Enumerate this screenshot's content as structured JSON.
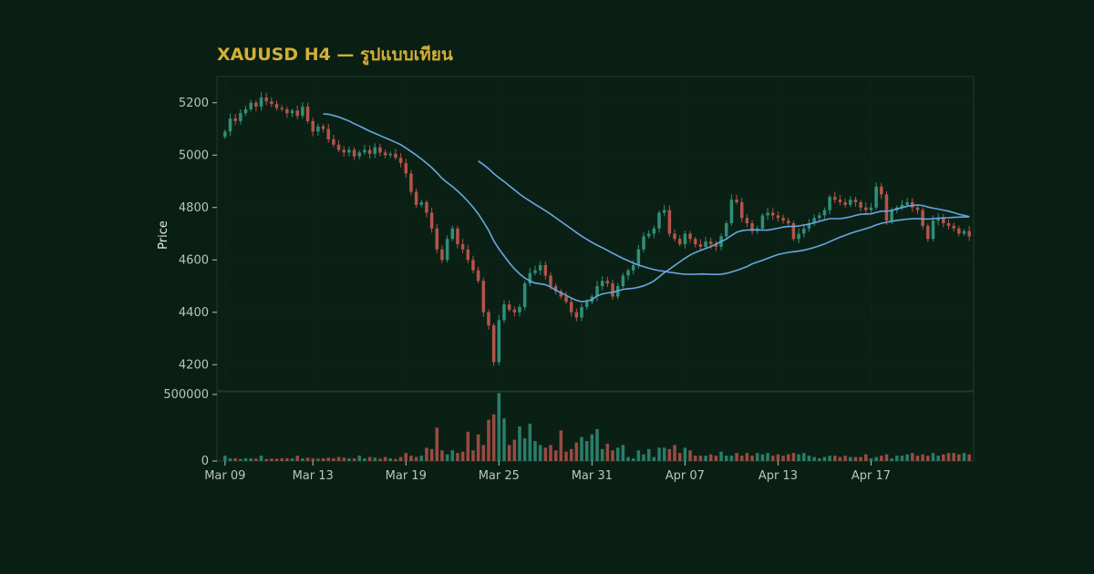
{
  "chart_title": "XAUUSD H4 — รูปแบบเทียน",
  "colors": {
    "background": "#0a1f13",
    "title": "#d4af37",
    "up": "#2f8f78",
    "down": "#b4544a",
    "ma": "#6aa6e0",
    "axis_text": "#b9c4bd",
    "frame": "#20382d"
  },
  "chart_data": [
    {
      "type": "candlestick",
      "title": "XAUUSD H4 — รูปแบบเทียน",
      "ylabel": "Price",
      "ylim": [
        4100,
        5300
      ],
      "yticks": [
        4200,
        4400,
        4600,
        4800,
        5000,
        5200
      ],
      "grid": true,
      "x_tick_labels": [
        "Mar 09",
        "Mar 13",
        "Mar 19",
        "Mar 25",
        "Mar 31",
        "Apr 07",
        "Apr 13",
        "Apr 17"
      ],
      "x_tick_candle_index": [
        0,
        17,
        35,
        53,
        71,
        89,
        107,
        125
      ],
      "close": [
        5090,
        5140,
        5130,
        5160,
        5175,
        5200,
        5185,
        5220,
        5205,
        5195,
        5180,
        5175,
        5160,
        5170,
        5150,
        5185,
        5130,
        5090,
        5110,
        5100,
        5060,
        5040,
        5020,
        5010,
        5020,
        4995,
        5010,
        5020,
        5005,
        5030,
        5010,
        5000,
        5005,
        4990,
        4970,
        4930,
        4860,
        4810,
        4820,
        4780,
        4720,
        4640,
        4600,
        4680,
        4720,
        4660,
        4640,
        4600,
        4560,
        4520,
        4400,
        4350,
        4210,
        4370,
        4430,
        4410,
        4400,
        4420,
        4510,
        4550,
        4560,
        4580,
        4540,
        4500,
        4480,
        4460,
        4440,
        4400,
        4380,
        4420,
        4440,
        4460,
        4500,
        4520,
        4510,
        4460,
        4500,
        4540,
        4560,
        4580,
        4640,
        4690,
        4700,
        4720,
        4780,
        4790,
        4700,
        4680,
        4660,
        4700,
        4680,
        4660,
        4650,
        4670,
        4660,
        4650,
        4690,
        4740,
        4830,
        4820,
        4760,
        4740,
        4710,
        4720,
        4770,
        4780,
        4770,
        4760,
        4750,
        4740,
        4680,
        4700,
        4720,
        4740,
        4760,
        4770,
        4790,
        4840,
        4830,
        4820,
        4810,
        4830,
        4820,
        4800,
        4790,
        4800,
        4880,
        4850,
        4750,
        4790,
        4800,
        4810,
        4820,
        4800,
        4790,
        4730,
        4680,
        4750,
        4760,
        4740,
        4730,
        4720,
        4700,
        4710,
        4690
      ],
      "volume": [
        40000,
        20000,
        20000,
        15000,
        20000,
        20000,
        18000,
        40000,
        15000,
        18000,
        18000,
        20000,
        20000,
        20000,
        40000,
        20000,
        25000,
        20000,
        18000,
        20000,
        25000,
        20000,
        30000,
        25000,
        20000,
        20000,
        40000,
        20000,
        30000,
        25000,
        18000,
        30000,
        20000,
        15000,
        30000,
        60000,
        40000,
        30000,
        40000,
        100000,
        90000,
        250000,
        80000,
        50000,
        80000,
        60000,
        70000,
        220000,
        80000,
        200000,
        120000,
        310000,
        350000,
        510000,
        320000,
        120000,
        160000,
        260000,
        170000,
        280000,
        150000,
        120000,
        100000,
        120000,
        80000,
        230000,
        70000,
        90000,
        140000,
        180000,
        150000,
        200000,
        240000,
        90000,
        130000,
        80000,
        100000,
        120000,
        30000,
        20000,
        80000,
        50000,
        90000,
        30000,
        100000,
        100000,
        90000,
        120000,
        60000,
        100000,
        80000,
        40000,
        40000,
        40000,
        50000,
        40000,
        70000,
        40000,
        40000,
        60000,
        40000,
        60000,
        40000,
        60000,
        50000,
        60000,
        40000,
        50000,
        40000,
        50000,
        60000,
        50000,
        60000,
        40000,
        30000,
        20000,
        30000,
        40000,
        40000,
        30000,
        40000,
        30000,
        30000,
        30000,
        50000,
        20000,
        30000,
        40000,
        50000,
        20000,
        40000,
        40000,
        50000,
        60000,
        40000,
        50000,
        40000,
        60000,
        40000,
        50000,
        60000,
        60000,
        50000,
        60000,
        50000
      ]
    },
    {
      "type": "bar",
      "ylabel": "",
      "ylim": [
        0,
        520000
      ],
      "yticks": [
        0,
        500000
      ]
    }
  ]
}
